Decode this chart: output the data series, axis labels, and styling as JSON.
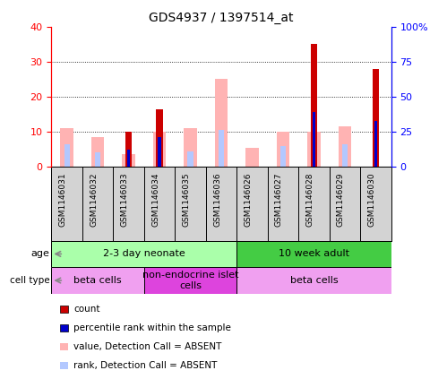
{
  "title": "GDS4937 / 1397514_at",
  "samples": [
    "GSM1146031",
    "GSM1146032",
    "GSM1146033",
    "GSM1146034",
    "GSM1146035",
    "GSM1146036",
    "GSM1146026",
    "GSM1146027",
    "GSM1146028",
    "GSM1146029",
    "GSM1146030"
  ],
  "count": [
    0,
    0,
    10,
    16.5,
    0,
    0,
    0,
    0,
    35,
    0,
    28
  ],
  "percentile_rank": [
    0,
    0,
    5,
    8.5,
    0,
    0,
    0,
    0,
    15.5,
    0,
    13
  ],
  "value_absent": [
    11,
    8.5,
    3.5,
    10,
    11,
    25,
    5.5,
    10,
    10,
    11.5,
    0
  ],
  "rank_absent": [
    6.5,
    4,
    4.5,
    0,
    4.5,
    10.5,
    0,
    6,
    6.5,
    6.5,
    0
  ],
  "ylim": [
    0,
    40
  ],
  "y2lim": [
    0,
    100
  ],
  "yticks": [
    0,
    10,
    20,
    30,
    40
  ],
  "y2ticks": [
    0,
    25,
    50,
    75,
    100
  ],
  "y2ticklabels": [
    "0",
    "25",
    "50",
    "75",
    "100%"
  ],
  "color_count": "#cc0000",
  "color_rank": "#0000cc",
  "color_value_absent": "#ffb3b3",
  "color_rank_absent": "#b3c8ff",
  "age_groups": [
    {
      "label": "2-3 day neonate",
      "start": 0,
      "end": 6,
      "color": "#aaffaa"
    },
    {
      "label": "10 week adult",
      "start": 6,
      "end": 11,
      "color": "#44cc44"
    }
  ],
  "cell_type_groups": [
    {
      "label": "beta cells",
      "start": 0,
      "end": 3,
      "color": "#f0a0f0"
    },
    {
      "label": "non-endocrine islet\ncells",
      "start": 3,
      "end": 6,
      "color": "#dd44dd"
    },
    {
      "label": "beta cells",
      "start": 6,
      "end": 11,
      "color": "#f0a0f0"
    }
  ],
  "legend_items": [
    {
      "label": "count",
      "color": "#cc0000"
    },
    {
      "label": "percentile rank within the sample",
      "color": "#0000cc"
    },
    {
      "label": "value, Detection Call = ABSENT",
      "color": "#ffb3b3"
    },
    {
      "label": "rank, Detection Call = ABSENT",
      "color": "#b3c8ff"
    }
  ],
  "bw_absent": 0.42,
  "bw_rank_absent": 0.18,
  "bw_count": 0.22,
  "bw_prank": 0.1
}
